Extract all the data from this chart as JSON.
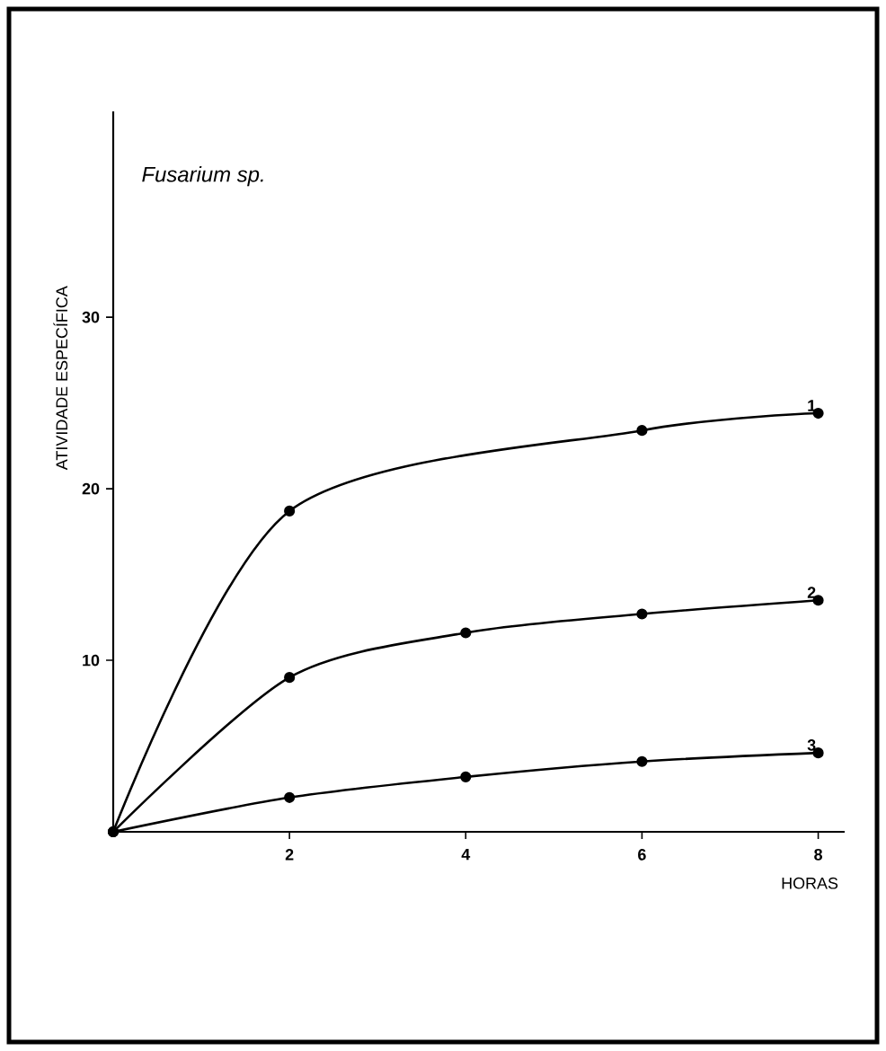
{
  "chart_data": {
    "type": "line",
    "title": "Fusarium sp.",
    "xlabel": "HORAS",
    "ylabel": "ATIVIDADE ESPECÍFICA",
    "series": [
      {
        "name": "1",
        "x": [
          0,
          2,
          6,
          8
        ],
        "values": [
          0,
          18.7,
          23.4,
          24.4
        ],
        "color": "#000000"
      },
      {
        "name": "2",
        "x": [
          0,
          2,
          4,
          6,
          8
        ],
        "values": [
          0,
          9.0,
          11.6,
          12.7,
          13.5
        ],
        "color": "#000000"
      },
      {
        "name": "3",
        "x": [
          0,
          2,
          4,
          6,
          8
        ],
        "values": [
          0,
          2.0,
          3.2,
          4.1,
          4.6
        ],
        "color": "#000000"
      }
    ],
    "xlim": [
      0,
      8.3
    ],
    "ylim": [
      0,
      42
    ],
    "xticks": [
      2,
      4,
      6,
      8
    ],
    "yticks": [
      10,
      20,
      30
    ],
    "marker": "circle",
    "line_style": "solid"
  }
}
